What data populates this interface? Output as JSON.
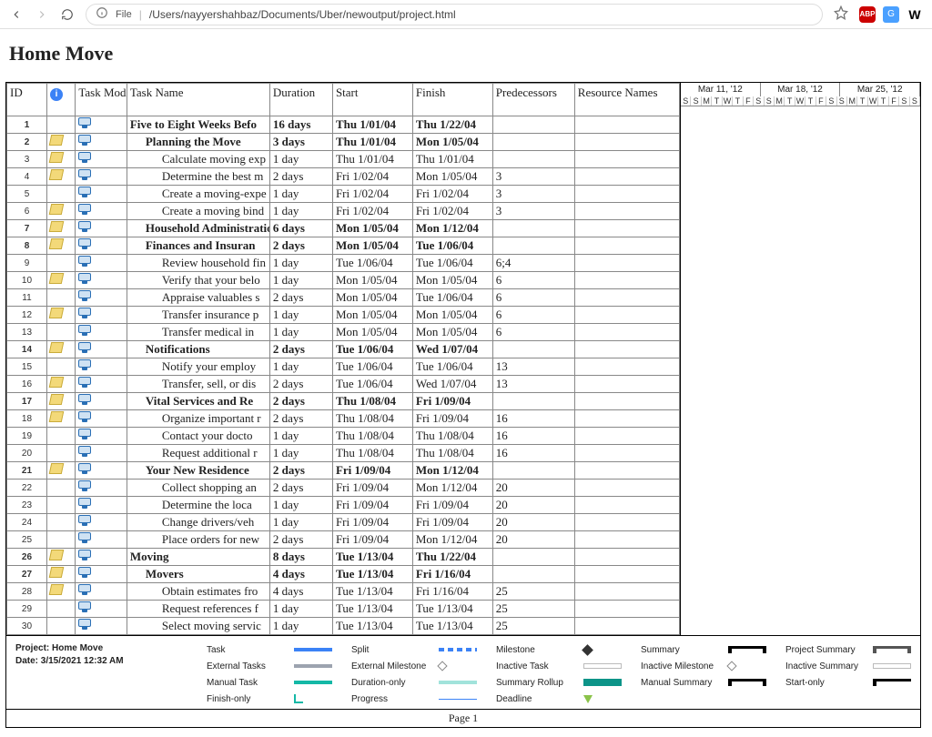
{
  "browser": {
    "file_label": "File",
    "path": "/Users/nayyershahbaz/Documents/Uber/newoutput/project.html",
    "ext_abp": "ABP",
    "ext_g": "G",
    "ext_w": "W"
  },
  "title": "Home Move",
  "columns": {
    "id": "ID",
    "info": "",
    "mode": "Task Mode",
    "name": "Task Name",
    "dur": "Duration",
    "start": "Start",
    "finish": "Finish",
    "pred": "Predecessors",
    "res": "Resource Names"
  },
  "timeline": {
    "weeks": [
      "Mar 11, '12",
      "Mar 18, '12",
      "Mar 25, '12"
    ],
    "days": [
      "S",
      "S",
      "M",
      "T",
      "W",
      "T",
      "F",
      "S",
      "S",
      "M",
      "T",
      "W",
      "T",
      "F",
      "S",
      "S",
      "M",
      "T",
      "W",
      "T",
      "F",
      "S",
      "S"
    ]
  },
  "rows": [
    {
      "id": "1",
      "note": false,
      "bold": true,
      "indent": 0,
      "name": "Five to Eight Weeks Befo",
      "dur": "16 days",
      "start": "Thu 1/01/04",
      "finish": "Thu 1/22/04",
      "pred": ""
    },
    {
      "id": "2",
      "note": true,
      "bold": true,
      "indent": 1,
      "name": "Planning the Move",
      "dur": "3 days",
      "start": "Thu 1/01/04",
      "finish": "Mon 1/05/04",
      "pred": ""
    },
    {
      "id": "3",
      "note": true,
      "bold": false,
      "indent": 2,
      "name": "Calculate moving exp",
      "dur": "1 day",
      "start": "Thu 1/01/04",
      "finish": "Thu 1/01/04",
      "pred": ""
    },
    {
      "id": "4",
      "note": true,
      "bold": false,
      "indent": 2,
      "name": "Determine the best m",
      "dur": "2 days",
      "start": "Fri 1/02/04",
      "finish": "Mon 1/05/04",
      "pred": "3"
    },
    {
      "id": "5",
      "note": false,
      "bold": false,
      "indent": 2,
      "name": "Create a moving-expe",
      "dur": "1 day",
      "start": "Fri 1/02/04",
      "finish": "Fri 1/02/04",
      "pred": "3"
    },
    {
      "id": "6",
      "note": true,
      "bold": false,
      "indent": 2,
      "name": "Create a moving bind",
      "dur": "1 day",
      "start": "Fri 1/02/04",
      "finish": "Fri 1/02/04",
      "pred": "3"
    },
    {
      "id": "7",
      "note": true,
      "bold": true,
      "indent": 1,
      "name": "Household Administratio",
      "dur": "6 days",
      "start": "Mon 1/05/04",
      "finish": "Mon 1/12/04",
      "pred": ""
    },
    {
      "id": "8",
      "note": true,
      "bold": true,
      "indent": 1,
      "name": "Finances and Insuran",
      "dur": "2 days",
      "start": "Mon 1/05/04",
      "finish": "Tue 1/06/04",
      "pred": ""
    },
    {
      "id": "9",
      "note": false,
      "bold": false,
      "indent": 2,
      "name": "Review household fin",
      "dur": "1 day",
      "start": "Tue 1/06/04",
      "finish": "Tue 1/06/04",
      "pred": "6;4"
    },
    {
      "id": "10",
      "note": true,
      "bold": false,
      "indent": 2,
      "name": "Verify that your belo",
      "dur": "1 day",
      "start": "Mon 1/05/04",
      "finish": "Mon 1/05/04",
      "pred": "6"
    },
    {
      "id": "11",
      "note": false,
      "bold": false,
      "indent": 2,
      "name": "Appraise valuables s",
      "dur": "2 days",
      "start": "Mon 1/05/04",
      "finish": "Tue 1/06/04",
      "pred": "6"
    },
    {
      "id": "12",
      "note": true,
      "bold": false,
      "indent": 2,
      "name": "Transfer insurance p",
      "dur": "1 day",
      "start": "Mon 1/05/04",
      "finish": "Mon 1/05/04",
      "pred": "6"
    },
    {
      "id": "13",
      "note": false,
      "bold": false,
      "indent": 2,
      "name": "Transfer medical in",
      "dur": "1 day",
      "start": "Mon 1/05/04",
      "finish": "Mon 1/05/04",
      "pred": "6"
    },
    {
      "id": "14",
      "note": true,
      "bold": true,
      "indent": 1,
      "name": "Notifications",
      "dur": "2 days",
      "start": "Tue 1/06/04",
      "finish": "Wed 1/07/04",
      "pred": ""
    },
    {
      "id": "15",
      "note": false,
      "bold": false,
      "indent": 2,
      "name": "Notify your employ",
      "dur": "1 day",
      "start": "Tue 1/06/04",
      "finish": "Tue 1/06/04",
      "pred": "13"
    },
    {
      "id": "16",
      "note": true,
      "bold": false,
      "indent": 2,
      "name": "Transfer, sell, or dis",
      "dur": "2 days",
      "start": "Tue 1/06/04",
      "finish": "Wed 1/07/04",
      "pred": "13"
    },
    {
      "id": "17",
      "note": true,
      "bold": true,
      "indent": 1,
      "name": "Vital Services and Re",
      "dur": "2 days",
      "start": "Thu 1/08/04",
      "finish": "Fri 1/09/04",
      "pred": ""
    },
    {
      "id": "18",
      "note": true,
      "bold": false,
      "indent": 2,
      "name": "Organize important r",
      "dur": "2 days",
      "start": "Thu 1/08/04",
      "finish": "Fri 1/09/04",
      "pred": "16"
    },
    {
      "id": "19",
      "note": false,
      "bold": false,
      "indent": 2,
      "name": "Contact your docto",
      "dur": "1 day",
      "start": "Thu 1/08/04",
      "finish": "Thu 1/08/04",
      "pred": "16"
    },
    {
      "id": "20",
      "note": false,
      "bold": false,
      "indent": 2,
      "name": "Request additional r",
      "dur": "1 day",
      "start": "Thu 1/08/04",
      "finish": "Thu 1/08/04",
      "pred": "16"
    },
    {
      "id": "21",
      "note": true,
      "bold": true,
      "indent": 1,
      "name": "Your New Residence",
      "dur": "2 days",
      "start": "Fri 1/09/04",
      "finish": "Mon 1/12/04",
      "pred": ""
    },
    {
      "id": "22",
      "note": false,
      "bold": false,
      "indent": 2,
      "name": "Collect shopping an",
      "dur": "2 days",
      "start": "Fri 1/09/04",
      "finish": "Mon 1/12/04",
      "pred": "20"
    },
    {
      "id": "23",
      "note": false,
      "bold": false,
      "indent": 2,
      "name": "Determine the loca",
      "dur": "1 day",
      "start": "Fri 1/09/04",
      "finish": "Fri 1/09/04",
      "pred": "20"
    },
    {
      "id": "24",
      "note": false,
      "bold": false,
      "indent": 2,
      "name": "Change drivers/veh",
      "dur": "1 day",
      "start": "Fri 1/09/04",
      "finish": "Fri 1/09/04",
      "pred": "20"
    },
    {
      "id": "25",
      "note": false,
      "bold": false,
      "indent": 2,
      "name": "Place orders for new",
      "dur": "2 days",
      "start": "Fri 1/09/04",
      "finish": "Mon 1/12/04",
      "pred": "20"
    },
    {
      "id": "26",
      "note": true,
      "bold": true,
      "indent": 0,
      "name": "Moving",
      "dur": "8 days",
      "start": "Tue 1/13/04",
      "finish": "Thu 1/22/04",
      "pred": ""
    },
    {
      "id": "27",
      "note": true,
      "bold": true,
      "indent": 1,
      "name": "Movers",
      "dur": "4 days",
      "start": "Tue 1/13/04",
      "finish": "Fri 1/16/04",
      "pred": ""
    },
    {
      "id": "28",
      "note": true,
      "bold": false,
      "indent": 2,
      "name": "Obtain estimates fro",
      "dur": "4 days",
      "start": "Tue 1/13/04",
      "finish": "Fri 1/16/04",
      "pred": "25"
    },
    {
      "id": "29",
      "note": false,
      "bold": false,
      "indent": 2,
      "name": "Request references f",
      "dur": "1 day",
      "start": "Tue 1/13/04",
      "finish": "Tue 1/13/04",
      "pred": "25"
    },
    {
      "id": "30",
      "note": false,
      "bold": false,
      "indent": 2,
      "name": "Select moving servic",
      "dur": "1 day",
      "start": "Tue 1/13/04",
      "finish": "Tue 1/13/04",
      "pred": "25"
    }
  ],
  "legend": {
    "project_label": "Project: Home Move",
    "date_label": "Date: 3/15/2021 12:32 AM",
    "items_c1": [
      "Task",
      "External Tasks",
      "Manual Task",
      "Finish-only"
    ],
    "items_c2": [
      "Split",
      "External Milestone",
      "Duration-only",
      "Progress"
    ],
    "items_c3": [
      "Milestone",
      "Inactive Task",
      "Summary Rollup",
      "Deadline"
    ],
    "items_c4": [
      "Summary",
      "Inactive Milestone",
      "Manual Summary",
      ""
    ],
    "items_c5": [
      "Project Summary",
      "Inactive Summary",
      "Start-only",
      ""
    ]
  },
  "page_label": "Page 1"
}
